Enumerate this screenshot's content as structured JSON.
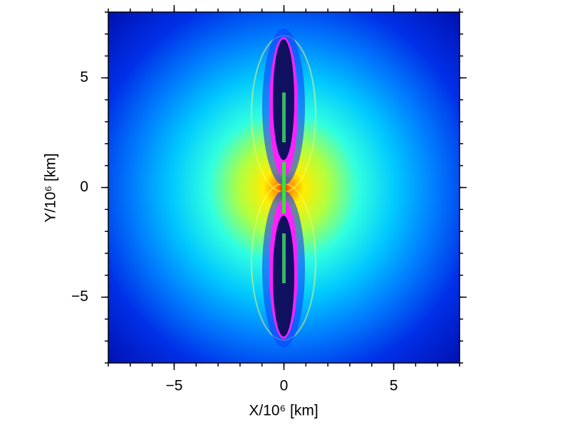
{
  "chart_data": {
    "type": "heatmap",
    "xlabel": "X/10⁶ [km]",
    "ylabel": "Y/10⁶ [km]",
    "xlim": [
      -8,
      8
    ],
    "ylim": [
      -8,
      8
    ],
    "xticks": [
      {
        "value": -5,
        "label": "−5"
      },
      0,
      5
    ],
    "yticks": [
      {
        "value": -5,
        "label": "−5"
      },
      0,
      5
    ],
    "xminorticks": [
      -8,
      -7,
      -6,
      -5,
      -4,
      -3,
      -2,
      -1,
      0,
      1,
      2,
      3,
      4,
      5,
      6,
      7,
      8
    ],
    "yminorticks": [
      -8,
      -7,
      -6,
      -5,
      -4,
      -3,
      -2,
      -1,
      0,
      1,
      2,
      3,
      4,
      5,
      6,
      7,
      8
    ]
  }
}
